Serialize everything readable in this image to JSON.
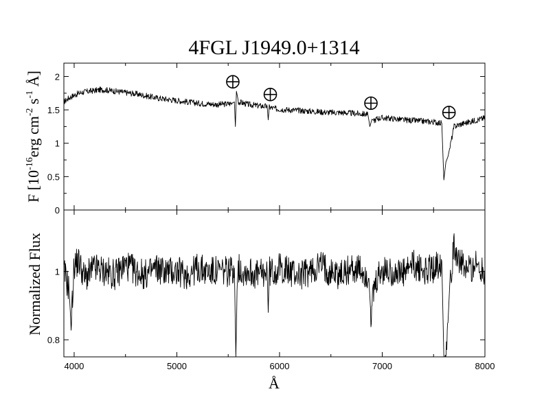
{
  "chart_data": [
    {
      "type": "line",
      "panel": "top",
      "title": "4FGL J1949.0+1314",
      "ylabel": "F [10",
      "ylabel_exp": "-16",
      "ylabel_units": "erg cm",
      "ylabel_units_exp1": "-2",
      "ylabel_s": " s",
      "ylabel_s_exp": "-1",
      "ylabel_tail": " Å]",
      "xlim": [
        3900,
        8000
      ],
      "ylim": [
        0,
        2.2
      ],
      "xticks": [
        4000,
        5000,
        6000,
        7000,
        8000
      ],
      "yticks": [
        0,
        0.5,
        1,
        1.5,
        2
      ],
      "ytick_labels": [
        "0",
        "0.5",
        "1",
        "1.5",
        "2"
      ],
      "grid": false,
      "series": [
        {
          "x": [
            3900,
            3950,
            4000,
            4050,
            4100,
            4150,
            4200,
            4250,
            4300,
            4350,
            4400,
            4450,
            4500,
            4600,
            4700,
            4800,
            4900,
            5000,
            5100,
            5200,
            5300,
            5400,
            5500,
            5540,
            5560,
            5570,
            5580,
            5600,
            5650,
            5700,
            5800,
            5880,
            5890,
            5900,
            5950,
            6000,
            6100,
            6200,
            6300,
            6400,
            6500,
            6600,
            6700,
            6800,
            6860,
            6880,
            6900,
            6920,
            6950,
            7000,
            7100,
            7200,
            7300,
            7400,
            7500,
            7580,
            7600,
            7620,
            7640,
            7660,
            7700,
            7750,
            7800,
            7900,
            8000
          ],
          "y": [
            1.62,
            1.68,
            1.72,
            1.75,
            1.77,
            1.78,
            1.79,
            1.8,
            1.8,
            1.79,
            1.78,
            1.77,
            1.76,
            1.74,
            1.71,
            1.68,
            1.66,
            1.64,
            1.62,
            1.6,
            1.59,
            1.58,
            1.59,
            1.6,
            1.62,
            1.25,
            1.78,
            1.62,
            1.6,
            1.58,
            1.56,
            1.55,
            1.35,
            1.54,
            1.52,
            1.51,
            1.5,
            1.49,
            1.48,
            1.47,
            1.46,
            1.46,
            1.45,
            1.44,
            1.43,
            1.25,
            1.36,
            1.34,
            1.37,
            1.38,
            1.37,
            1.35,
            1.34,
            1.33,
            1.32,
            1.3,
            0.45,
            0.72,
            0.8,
            0.95,
            1.25,
            1.28,
            1.3,
            1.34,
            1.38
          ]
        }
      ],
      "annotations": [
        {
          "symbol": "⊕",
          "x": 5545,
          "y": 1.92
        },
        {
          "symbol": "⊕",
          "x": 5910,
          "y": 1.73
        },
        {
          "symbol": "⊕",
          "x": 6890,
          "y": 1.6
        },
        {
          "symbol": "⊕",
          "x": 7650,
          "y": 1.46
        }
      ]
    },
    {
      "type": "line",
      "panel": "bottom",
      "ylabel": "Normalized Flux",
      "xlabel": "Å",
      "xlim": [
        3900,
        8000
      ],
      "ylim": [
        0.75,
        1.18
      ],
      "xticks": [
        4000,
        5000,
        6000,
        7000,
        8000
      ],
      "xtick_labels": [
        "4000",
        "5000",
        "6000",
        "7000",
        "8000"
      ],
      "yticks": [
        0.8,
        1
      ],
      "ytick_labels": [
        "0.8",
        "1"
      ],
      "grid": false,
      "series": [
        {
          "x": [
            3900,
            3950,
            3970,
            4000,
            4050,
            4100,
            4200,
            4300,
            4400,
            4500,
            4600,
            4700,
            4800,
            4900,
            5000,
            5100,
            5200,
            5300,
            5400,
            5500,
            5560,
            5575,
            5590,
            5650,
            5700,
            5800,
            5880,
            5890,
            5900,
            5950,
            6000,
            6100,
            6200,
            6300,
            6400,
            6500,
            6600,
            6700,
            6800,
            6870,
            6890,
            6920,
            6960,
            7000,
            7100,
            7200,
            7300,
            7400,
            7500,
            7580,
            7600,
            7610,
            7640,
            7660,
            7700,
            7750,
            7800,
            7900,
            8000
          ],
          "y": [
            1.0,
            0.95,
            0.84,
            1.02,
            1.03,
            0.98,
            1.01,
            1.0,
            0.99,
            1.02,
            1.0,
            0.99,
            1.01,
            1.0,
            1.0,
            0.99,
            1.01,
            1.0,
            1.0,
            1.0,
            1.01,
            0.75,
            1.01,
            1.0,
            1.0,
            0.99,
            1.0,
            0.88,
            1.0,
            1.0,
            1.01,
            1.0,
            0.99,
            1.0,
            1.02,
            1.0,
            0.99,
            1.01,
            1.0,
            0.98,
            0.87,
            0.94,
            0.98,
            1.0,
            1.0,
            0.99,
            1.02,
            1.0,
            1.01,
            1.03,
            0.75,
            0.75,
            0.85,
            0.98,
            1.07,
            1.04,
            1.0,
            1.02,
            1.0
          ]
        }
      ]
    }
  ]
}
